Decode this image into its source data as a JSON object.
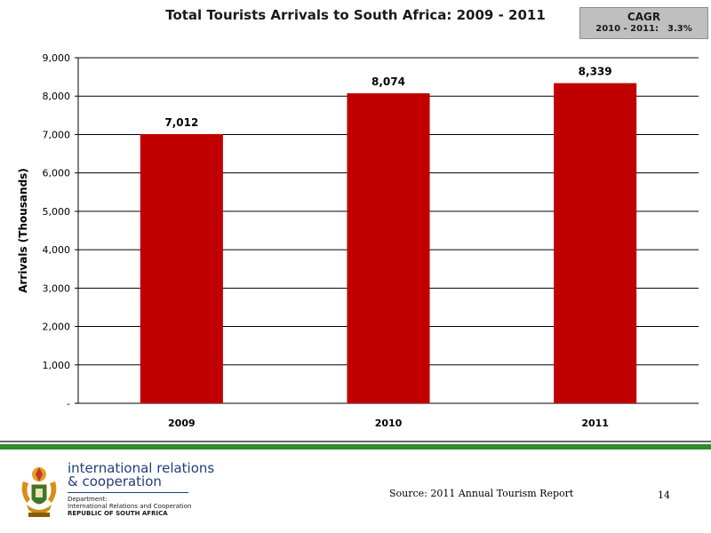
{
  "chart_data": {
    "type": "bar",
    "title": "Total Tourists Arrivals to South Africa: 2009 - 2011",
    "xlabel": "",
    "ylabel": "Arrivals (Thousands)",
    "categories": [
      "2009",
      "2010",
      "2011"
    ],
    "values": [
      7012,
      8074,
      8339
    ],
    "value_labels": [
      "7,012",
      "8,074",
      "8,339"
    ],
    "ylim": [
      0,
      9000
    ],
    "yticks": [
      0,
      1000,
      2000,
      3000,
      4000,
      5000,
      6000,
      7000,
      8000,
      9000
    ],
    "ytick_labels": [
      "-",
      "1,000",
      "2,000",
      "3,000",
      "4,000",
      "5,000",
      "6,000",
      "7,000",
      "8,000",
      "9,000"
    ],
    "grid": true,
    "legend": "none",
    "bar_color": "#c00000"
  },
  "cagr": {
    "title": "CAGR",
    "period": "2010 - 2011:",
    "value": "3.3%"
  },
  "footer": {
    "logo_line1": "international relations",
    "logo_line2": "& cooperation",
    "logo_dept": "Department:",
    "logo_dept_name": "International Relations and Cooperation",
    "logo_country": "REPUBLIC OF SOUTH AFRICA",
    "source": "Source: 2011 Annual Tourism Report",
    "page_number": "14"
  },
  "colors": {
    "bar": "#c00000",
    "footer_green": "#2e8b2e",
    "logo_blue": "#1f3f7a"
  }
}
